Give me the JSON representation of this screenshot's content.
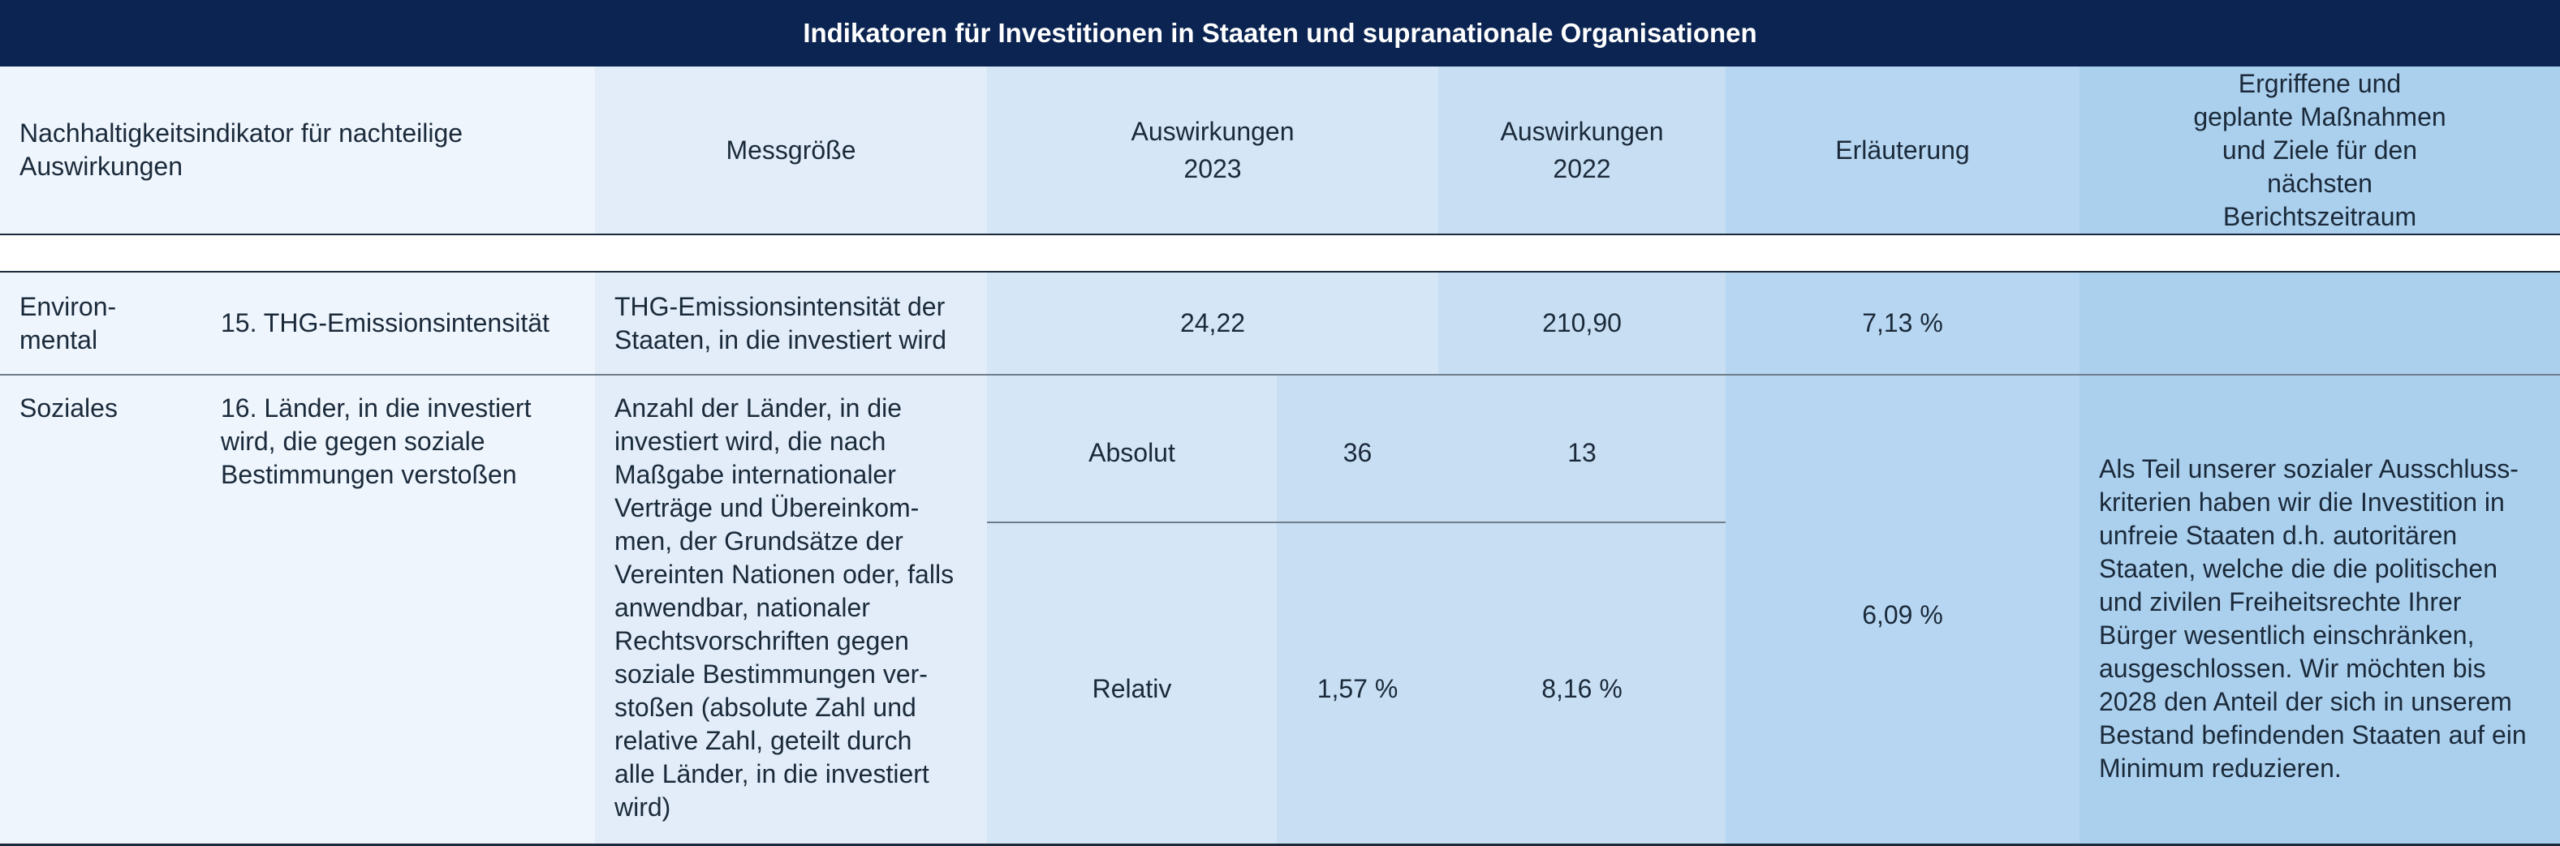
{
  "title": "Indikatoren für Investitionen in Staaten und supranationale Organisationen",
  "header": {
    "indicator": "Nachhaltigkeitsindikator für nachteilige Auswirkungen",
    "metric": "Messgröße",
    "impact_2023": "Auswirkungen 2023",
    "impact_2022": "Auswirkungen 2022",
    "explanation": "Erläuterung",
    "measures": "Ergriffene und geplante Maßnahmen und Ziele für den nächsten Berichtszeitraum"
  },
  "rows": {
    "environmental": {
      "category": "Environ-mental",
      "indicator": "15. THG-Emissionsintensität",
      "metric": "THG-Emissionsintensität der Staaten, in die investiert wird",
      "impact_2023": "24,22",
      "impact_2022": "210,90",
      "explanation": "7,13 %",
      "measures": ""
    },
    "social": {
      "category": "Soziales",
      "indicator": "16. Länder, in die investiert wird, die gegen soziale Bestimmungen verstoßen",
      "metric": "Anzahl der Länder, in die investiert wird, die nach Maßgabe internationaler Verträge und Übereinkom-men, der Grundsätze der Vereinten Nationen oder, falls anwendbar, nationaler Rechtsvorschriften gegen soziale Bestimmungen ver-stoßen (absolute Zahl und relative Zahl, geteilt durch alle Länder, in die investiert wird)",
      "absolute_label": "Absolut",
      "absolute_2023": "36",
      "absolute_2022": "13",
      "relative_label": "Relativ",
      "relative_2023": "1,57 %",
      "relative_2022": "8,16 %",
      "explanation": "6,09 %",
      "measures": "Als Teil unserer sozialer Ausschluss-kriterien haben wir die Investition in unfreie Staaten d.h. autoritären Staaten, welche die die politischen und zivilen Freiheitsrechte Ihrer Bürger wesentlich einschränken, ausgeschlossen. Wir möchten bis 2028 den Anteil der sich in unserem Bestand befindenden Staaten auf ein Minimum reduzieren."
    }
  },
  "colors": {
    "title_bg": "#0b2451",
    "col1": "#eef5fd",
    "col2": "#e2edf9",
    "col3": "#d5e6f6",
    "col4": "#c8dff3",
    "col5": "#b7d6f1",
    "col6": "#abd0ee"
  }
}
